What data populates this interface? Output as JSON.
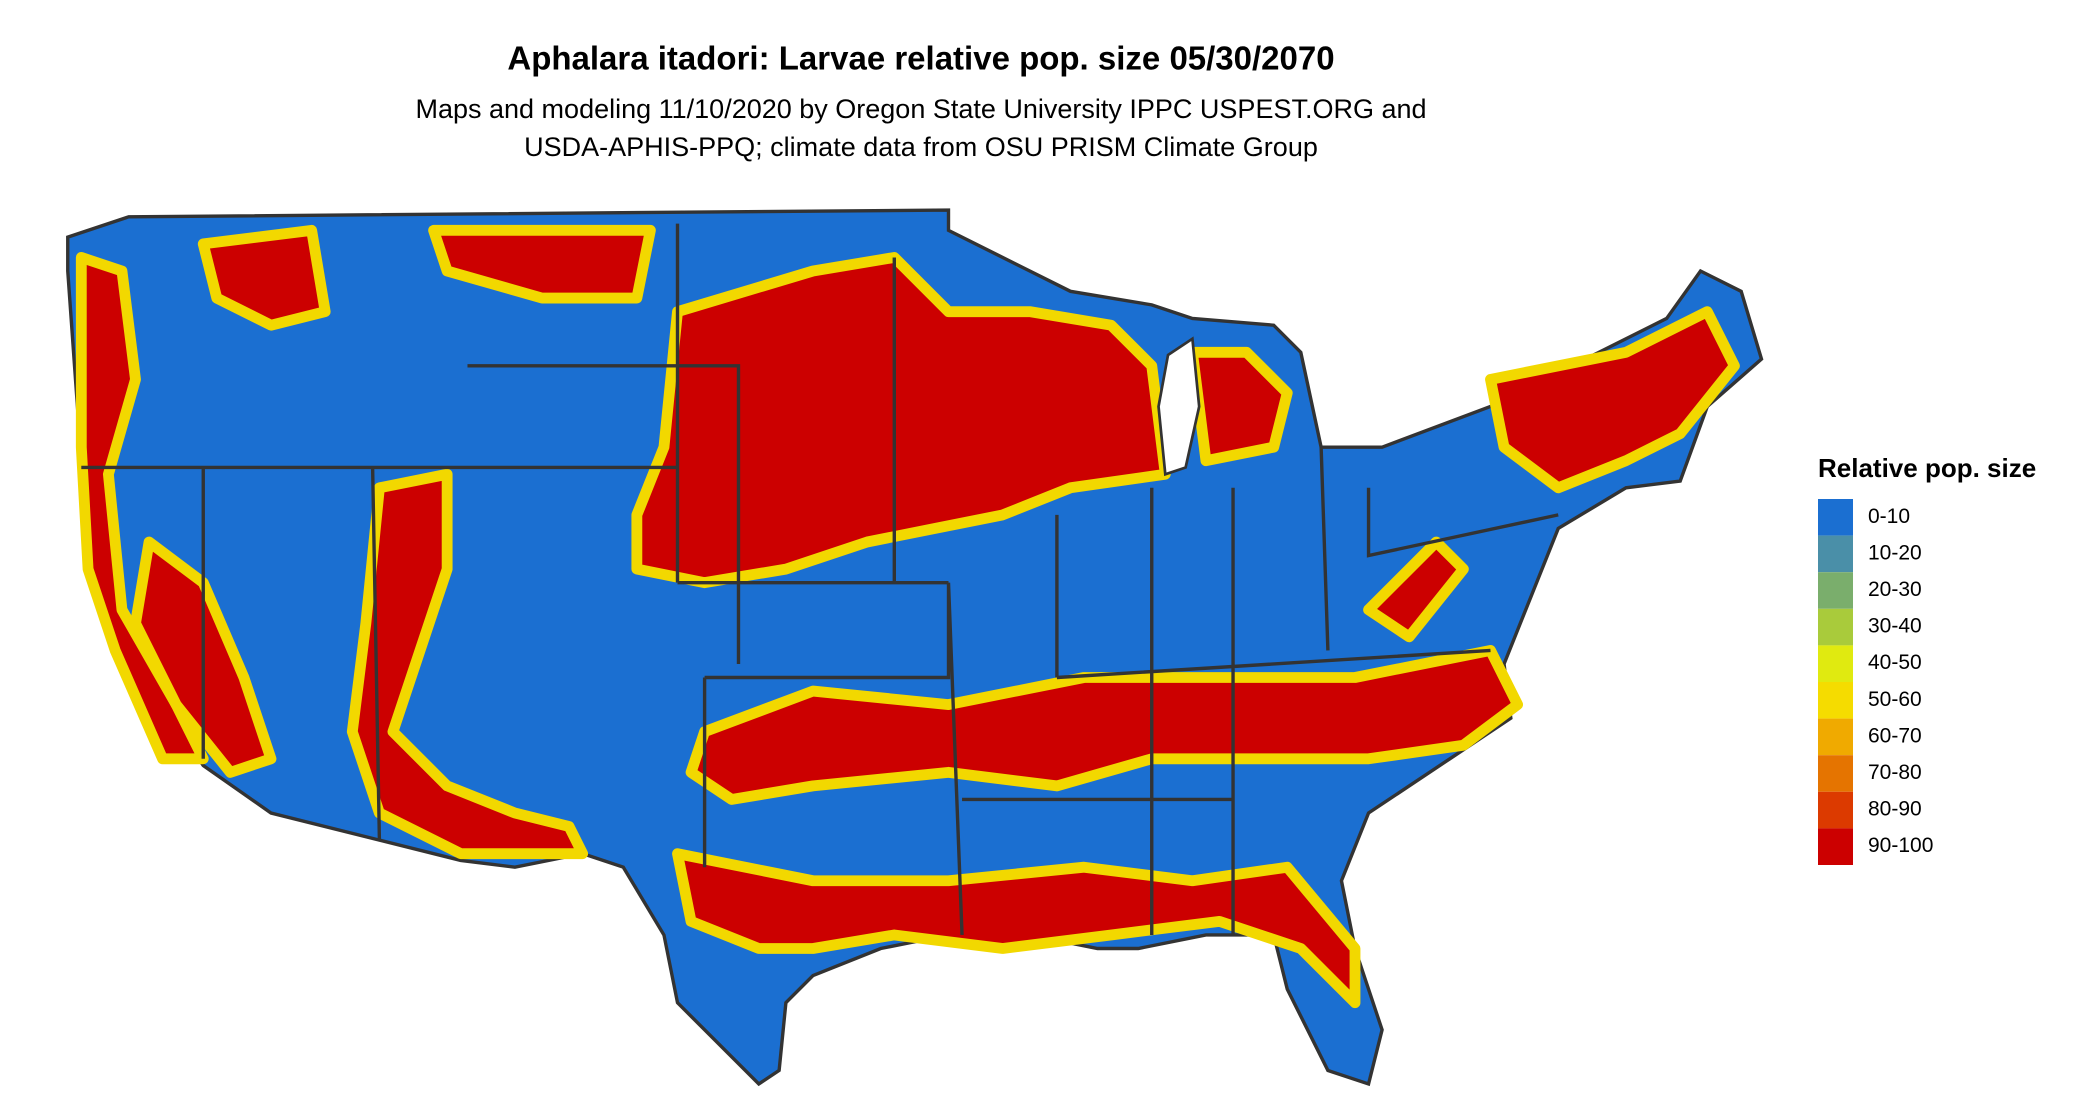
{
  "header": {
    "title": "Aphalara itadori: Larvae relative pop. size 05/30/2070",
    "subtitle": [
      "Maps and modeling 11/10/2020 by Oregon State University IPPC USPEST.ORG and",
      "USDA-APHIS-PPQ; climate data from OSU PRISM Climate Group"
    ]
  },
  "legend": {
    "title": "Relative pop. size",
    "items": [
      {
        "label": "0-10",
        "color": "#1b6fd1"
      },
      {
        "label": "10-20",
        "color": "#4a8fa8"
      },
      {
        "label": "20-30",
        "color": "#7aae6c"
      },
      {
        "label": "30-40",
        "color": "#a9cb3b"
      },
      {
        "label": "40-50",
        "color": "#e0ea10"
      },
      {
        "label": "50-60",
        "color": "#f5dc00"
      },
      {
        "label": "60-70",
        "color": "#f0aa00"
      },
      {
        "label": "70-80",
        "color": "#e57400"
      },
      {
        "label": "80-90",
        "color": "#dc3a00"
      },
      {
        "label": "90-100",
        "color": "#cc0000"
      }
    ]
  }
}
